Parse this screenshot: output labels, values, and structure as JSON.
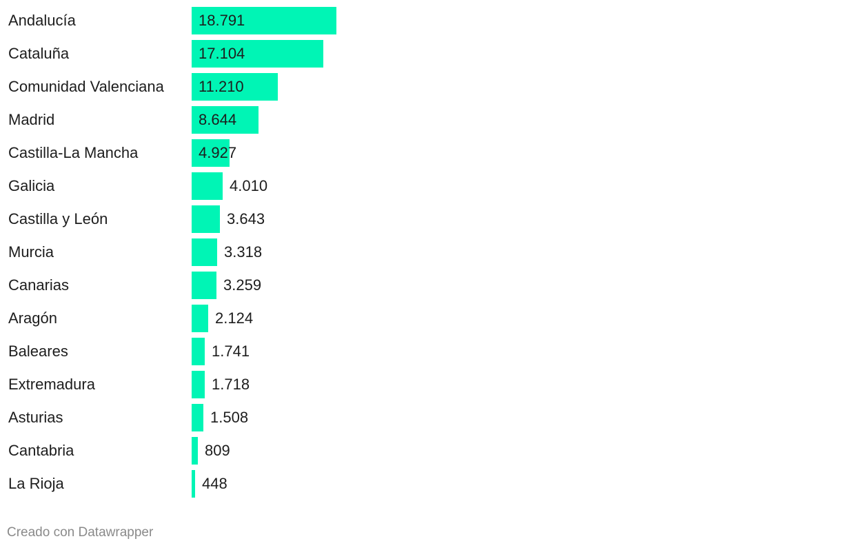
{
  "chart_data": {
    "type": "bar",
    "orientation": "horizontal",
    "categories": [
      "Andalucía",
      "Cataluña",
      "Comunidad Valenciana",
      "Madrid",
      "Castilla-La Mancha",
      "Galicia",
      "Castilla y León",
      "Murcia",
      "Canarias",
      "Aragón",
      "Baleares",
      "Extremadura",
      "Asturias",
      "Cantabria",
      "La Rioja"
    ],
    "values": [
      18791,
      17104,
      11210,
      8644,
      4927,
      4010,
      3643,
      3318,
      3259,
      2124,
      1741,
      1718,
      1508,
      809,
      448
    ],
    "value_labels": [
      "18.791",
      "17.104",
      "11.210",
      "8.644",
      "4.927",
      "4.010",
      "3.643",
      "3.318",
      "3.259",
      "2.124",
      "1.741",
      "1.718",
      "1.508",
      "809",
      "448"
    ],
    "bar_color": "#00f5b5",
    "grid": false,
    "legend": "none"
  },
  "footer": {
    "credit": "Creado con Datawrapper"
  }
}
